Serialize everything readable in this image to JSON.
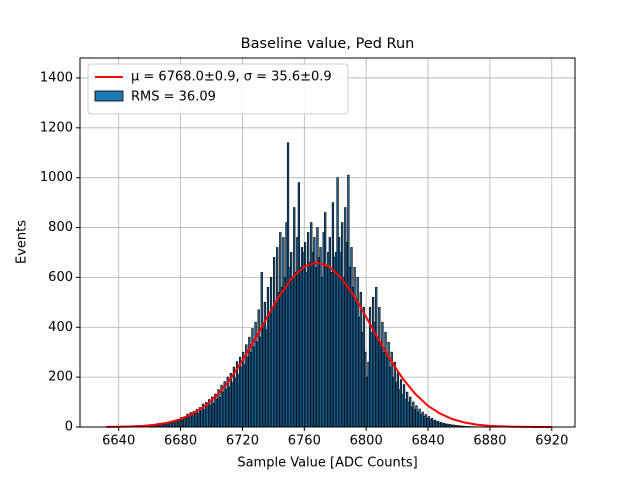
{
  "chart_data": {
    "type": "histogram",
    "title": "Baseline value, Ped Run",
    "xlabel": "Sample Value [ADC Counts]",
    "ylabel": "Events",
    "name": "RMS = 36.09",
    "color": "#1f77b4",
    "edgecolor": "#000000",
    "bins": [
      6660,
      6661,
      6662,
      6663,
      6664,
      6665,
      6666,
      6667,
      6668,
      6669,
      6670,
      6671,
      6672,
      6673,
      6674,
      6675,
      6676,
      6677,
      6678,
      6679,
      6680,
      6681,
      6682,
      6683,
      6684,
      6685,
      6686,
      6687,
      6688,
      6689,
      6690,
      6691,
      6692,
      6693,
      6694,
      6695,
      6696,
      6697,
      6698,
      6699,
      6700,
      6701,
      6702,
      6703,
      6704,
      6705,
      6706,
      6707,
      6708,
      6709,
      6710,
      6711,
      6712,
      6713,
      6714,
      6715,
      6716,
      6717,
      6718,
      6719,
      6720,
      6721,
      6722,
      6723,
      6724,
      6725,
      6726,
      6727,
      6728,
      6729,
      6730,
      6731,
      6732,
      6733,
      6734,
      6735,
      6736,
      6737,
      6738,
      6739,
      6740,
      6741,
      6742,
      6743,
      6744,
      6745,
      6746,
      6747,
      6748,
      6749,
      6750,
      6751,
      6752,
      6753,
      6754,
      6755,
      6756,
      6757,
      6758,
      6759,
      6760,
      6761,
      6762,
      6763,
      6764,
      6765,
      6766,
      6767,
      6768,
      6769,
      6770,
      6771,
      6772,
      6773,
      6774,
      6775,
      6776,
      6777,
      6778,
      6779,
      6780,
      6781,
      6782,
      6783,
      6784,
      6785,
      6786,
      6787,
      6788,
      6789,
      6790,
      6791,
      6792,
      6793,
      6794,
      6795,
      6796,
      6797,
      6798,
      6799,
      6800,
      6801,
      6802,
      6803,
      6804,
      6805,
      6806,
      6807,
      6808,
      6809,
      6810,
      6811,
      6812,
      6813,
      6814,
      6815,
      6816,
      6817,
      6818,
      6819,
      6820,
      6821,
      6822,
      6823,
      6824,
      6825,
      6826,
      6827,
      6828,
      6829,
      6830,
      6831,
      6832,
      6833,
      6834,
      6835,
      6836,
      6837,
      6838,
      6839,
      6840,
      6841,
      6842,
      6843,
      6844,
      6845,
      6846,
      6847,
      6848,
      6849,
      6850,
      6851,
      6852,
      6853,
      6854,
      6855,
      6856,
      6857,
      6858,
      6859,
      6860,
      6861,
      6862,
      6863,
      6864,
      6865,
      6866,
      6867,
      6868,
      6869,
      6870,
      6871
    ],
    "values": [
      4,
      9,
      6,
      11,
      8,
      14,
      7,
      12,
      16,
      10,
      18,
      13,
      21,
      15,
      24,
      19,
      27,
      22,
      30,
      26,
      38,
      28,
      41,
      36,
      52,
      40,
      58,
      45,
      62,
      54,
      70,
      55,
      78,
      64,
      92,
      70,
      98,
      84,
      110,
      88,
      120,
      95,
      132,
      110,
      150,
      118,
      168,
      140,
      182,
      150,
      200,
      160,
      215,
      178,
      240,
      195,
      262,
      210,
      280,
      240,
      300,
      250,
      330,
      280,
      360,
      300,
      395,
      320,
      420,
      340,
      470,
      360,
      620,
      410,
      500,
      390,
      560,
      450,
      600,
      480,
      680,
      500,
      720,
      540,
      780,
      560,
      760,
      600,
      820,
      1140,
      640,
      700,
      600,
      880,
      620,
      760,
      980,
      640,
      720,
      700,
      740,
      620,
      780,
      660,
      820,
      700,
      760,
      640,
      800,
      680,
      720,
      600,
      780,
      860,
      640,
      700,
      760,
      620,
      900,
      680,
      700,
      1000,
      760,
      700,
      820,
      600,
      880,
      740,
      1010,
      640,
      720,
      560,
      640,
      500,
      600,
      440,
      540,
      380,
      480,
      300,
      200,
      260,
      480,
      380,
      520,
      420,
      560,
      360,
      480,
      340,
      420,
      300,
      380,
      280,
      340,
      240,
      300,
      200,
      260,
      180,
      220,
      150,
      190,
      130,
      170,
      110,
      140,
      100,
      120,
      80,
      100,
      70,
      85,
      60,
      72,
      50,
      60,
      42,
      50,
      35,
      42,
      30,
      35,
      24,
      28,
      20,
      23,
      16,
      19,
      13,
      15,
      11,
      12,
      9,
      10,
      7,
      8,
      6,
      6,
      5,
      4,
      4,
      3,
      3,
      2,
      2,
      2,
      1,
      1,
      1,
      1
    ],
    "fit": {
      "name": "μ = 6768.0±0.9, σ = 35.6±0.9",
      "color": "#ff0000",
      "x": [
        6632,
        6640,
        6648,
        6656,
        6664,
        6672,
        6680,
        6688,
        6696,
        6704,
        6712,
        6720,
        6728,
        6736,
        6744,
        6752,
        6760,
        6768,
        6776,
        6784,
        6792,
        6800,
        6808,
        6816,
        6824,
        6832,
        6840,
        6848,
        6856,
        6864,
        6872,
        6880,
        6888,
        6896,
        6904,
        6912,
        6920
      ],
      "values": [
        0.44,
        1.0,
        2.3,
        4.7,
        9.2,
        17.4,
        31,
        53,
        85,
        131,
        191,
        266,
        351,
        441,
        527,
        597,
        644,
        660,
        644,
        597,
        527,
        441,
        351,
        266,
        191,
        131,
        85,
        53,
        31,
        17.4,
        9.2,
        4.7,
        2.3,
        1.0,
        0.44,
        0.19,
        0.07
      ]
    },
    "xlim": [
      6615,
      6935
    ],
    "xticks": [
      6640,
      6680,
      6720,
      6760,
      6800,
      6840,
      6880,
      6920
    ],
    "ylim": [
      0,
      1480
    ],
    "yticks": [
      0,
      200,
      400,
      600,
      800,
      1000,
      1200,
      1400
    ],
    "grid": true,
    "legend": "upper left"
  }
}
